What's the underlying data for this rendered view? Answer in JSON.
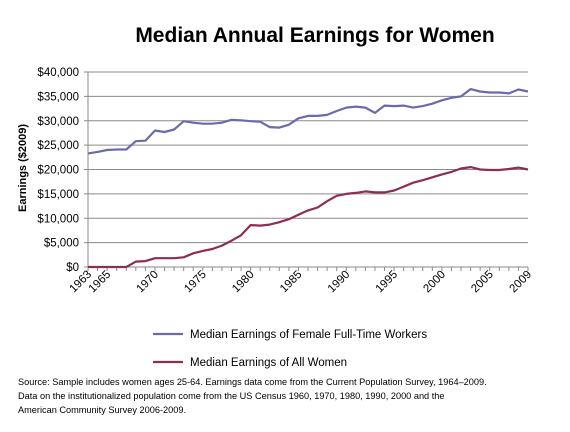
{
  "chart_data": {
    "type": "line",
    "title": "Median Annual Earnings for Women",
    "ylabel": "Earnings ($2009)",
    "xlabel": "",
    "xlim": [
      1963,
      2009
    ],
    "ylim": [
      0,
      40000
    ],
    "x_ticks": [
      "1963",
      "1965",
      "1970",
      "1975",
      "1980",
      "1985",
      "1990",
      "1995",
      "2000",
      "2005",
      "2009"
    ],
    "y_ticks": [
      "$0",
      "$5,000",
      "$10,000",
      "$15,000",
      "$20,000",
      "$25,000",
      "$30,000",
      "$35,000",
      "$40,000"
    ],
    "grid": "horizontal",
    "legend_position": "bottom",
    "x": [
      1963,
      1964,
      1965,
      1966,
      1967,
      1968,
      1969,
      1970,
      1971,
      1972,
      1973,
      1974,
      1975,
      1976,
      1977,
      1978,
      1979,
      1980,
      1981,
      1982,
      1983,
      1984,
      1985,
      1986,
      1987,
      1988,
      1989,
      1990,
      1991,
      1992,
      1993,
      1994,
      1995,
      1996,
      1997,
      1998,
      1999,
      2000,
      2001,
      2002,
      2003,
      2004,
      2005,
      2006,
      2007,
      2008,
      2009
    ],
    "series": [
      {
        "name": "Median Earnings of Female Full-Time Workers",
        "color": "#6b6bac",
        "values": [
          23300,
          23600,
          24000,
          24100,
          24100,
          25800,
          25900,
          28000,
          27700,
          28200,
          29900,
          29600,
          29400,
          29400,
          29600,
          30200,
          30100,
          29900,
          29800,
          28700,
          28600,
          29200,
          30500,
          31000,
          31000,
          31200,
          32000,
          32700,
          32900,
          32700,
          31600,
          33100,
          33000,
          33100,
          32700,
          33000,
          33500,
          34200,
          34700,
          35000,
          36500,
          36000,
          35800,
          35800,
          35600,
          36400,
          36000
        ]
      },
      {
        "name": "Median Earnings of All Women",
        "color": "#8b2d55",
        "values": [
          0,
          0,
          0,
          0,
          0,
          1100,
          1200,
          1800,
          1800,
          1800,
          2000,
          2800,
          3300,
          3700,
          4400,
          5400,
          6500,
          8600,
          8500,
          8700,
          9200,
          9800,
          10700,
          11600,
          12200,
          13500,
          14600,
          15000,
          15200,
          15500,
          15300,
          15300,
          15700,
          16500,
          17300,
          17800,
          18400,
          19000,
          19500,
          20200,
          20500,
          20000,
          19900,
          19900,
          20100,
          20400,
          20000
        ]
      }
    ]
  },
  "source_note": {
    "line1": "Source: Sample includes women ages 25-64. Earnings data come from the Current Population Survey, 1964–2009.",
    "line2": "Data on the institutionalized population come from the US Census 1960, 1970, 1980, 1990, 2000 and the",
    "line3": "American Community Survey 2006-2009."
  }
}
